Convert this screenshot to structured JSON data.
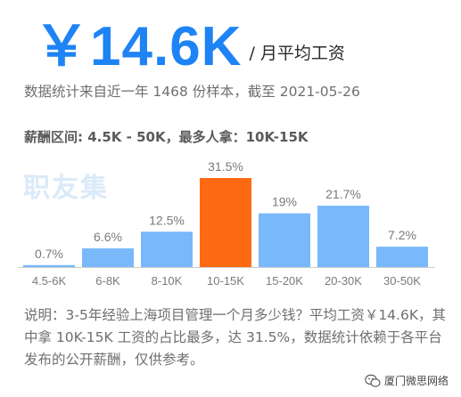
{
  "header": {
    "salary_value": "￥14.6K",
    "salary_unit": "/ 月平均工资",
    "sample_note": "数据统计来自近一年 1468 份样本，截至 2021-05-26",
    "range_line": "薪酬区间: 4.5K - 50K，最多人拿：10K-15K"
  },
  "watermark": "职友集",
  "chart_data": {
    "type": "bar",
    "categories": [
      "4.5-6K",
      "6-8K",
      "8-10K",
      "10-15K",
      "15-20K",
      "20-30K",
      "30-50K"
    ],
    "values": [
      0.7,
      6.6,
      12.5,
      31.5,
      19,
      21.7,
      7.2
    ],
    "value_labels": [
      "0.7%",
      "6.6%",
      "12.5%",
      "31.5%",
      "19%",
      "21.7%",
      "7.2%"
    ],
    "highlight_category": "10-15K",
    "ylim": [
      0,
      31.5
    ],
    "grid": false,
    "colors": {
      "bar": "#78b8fb",
      "highlight": "#fd6a12",
      "label": "#7a7a7a",
      "axis": "#cccccc"
    }
  },
  "description": "说明：3-5年经验上海项目管理一个月多少钱？平均工资￥14.6K，其中拿 10K-15K 工资的占比最多，达 31.5%，数据统计依赖于各平台发布的公开薪酬，仅供参考。",
  "footer": {
    "source_label": "厦门微思网络",
    "icon": "wechat-icon"
  }
}
